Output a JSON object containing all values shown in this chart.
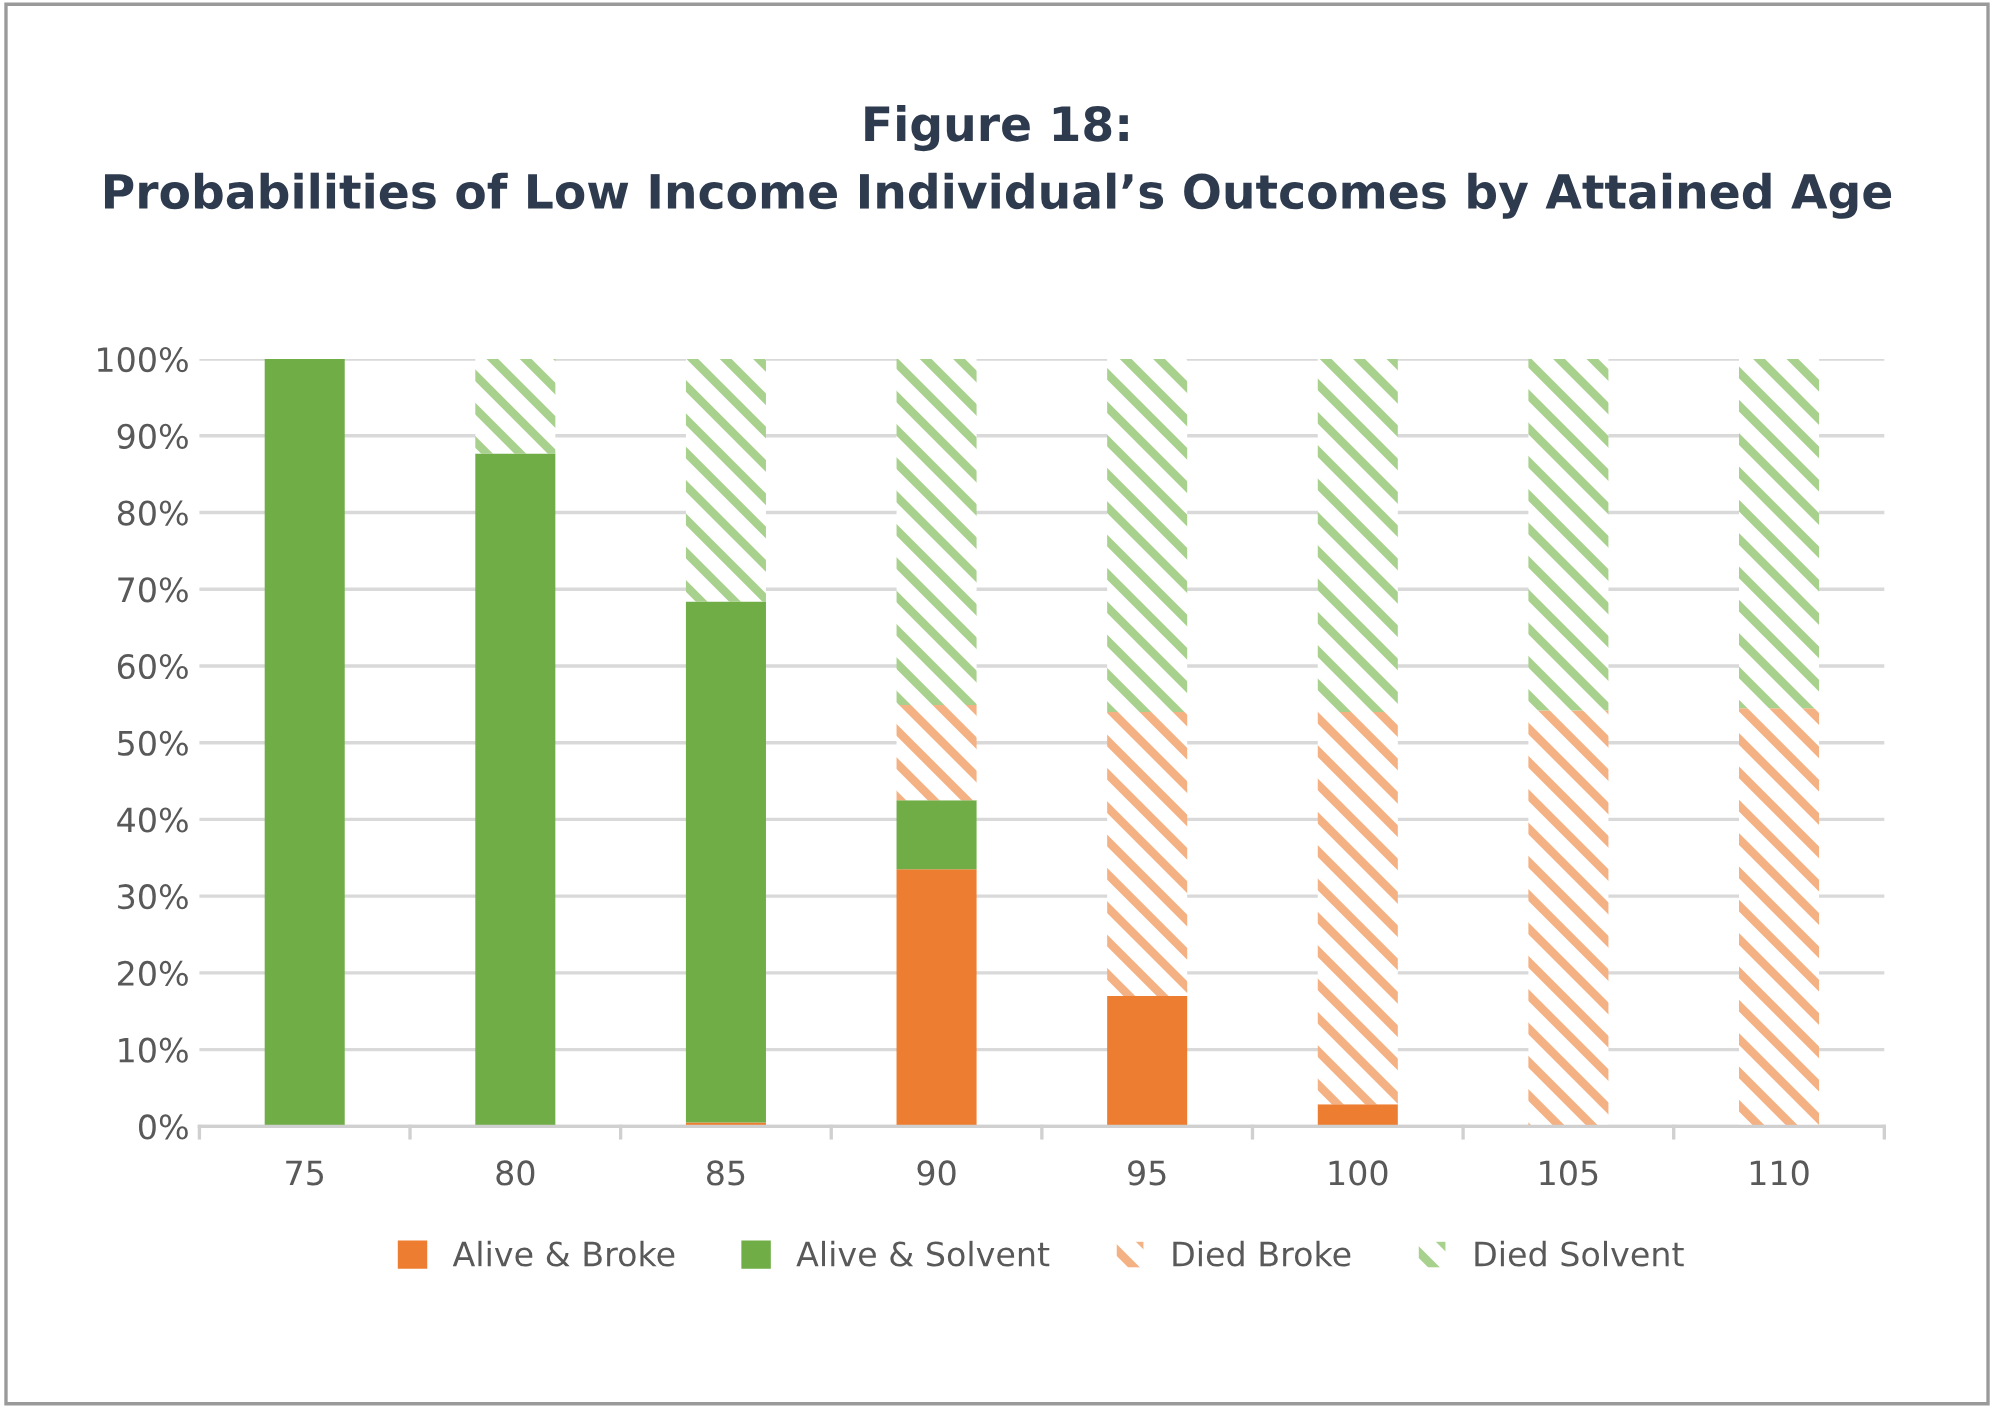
{
  "chart_data": {
    "type": "bar",
    "stacked": true,
    "title": "Figure 18:\nProbabilities of Low Income Individual’s Outcomes by Attained Age",
    "categories": [
      "75",
      "80",
      "85",
      "90",
      "95",
      "100",
      "105",
      "110"
    ],
    "series": [
      {
        "name": "Alive & Broke",
        "color": "#ed7d31",
        "values": [
          0,
          0,
          0.5,
          33.5,
          17,
          2.9,
          0,
          0
        ]
      },
      {
        "name": "Alive & Solvent",
        "color": "#70ad47",
        "values": [
          100,
          87.7,
          67.9,
          9,
          0,
          0,
          0,
          0
        ]
      },
      {
        "name": "Died Broke",
        "color": "#f4b183",
        "values": [
          0,
          0,
          0,
          12.4,
          37,
          51.1,
          54.2,
          54.5
        ]
      },
      {
        "name": "Died Solvent",
        "color": "#a9d18e",
        "values": [
          0,
          12.3,
          31.6,
          45.1,
          46,
          46,
          45.8,
          45.5
        ]
      }
    ],
    "ylim": [
      0,
      100
    ],
    "yticks": [
      {
        "value": 0,
        "label": "0%"
      },
      {
        "value": 10,
        "label": "10%"
      },
      {
        "value": 20,
        "label": "20%"
      },
      {
        "value": 30,
        "label": "30%"
      },
      {
        "value": 40,
        "label": "40%"
      },
      {
        "value": 50,
        "label": "50%"
      },
      {
        "value": 60,
        "label": "60%"
      },
      {
        "value": 70,
        "label": "70%"
      },
      {
        "value": 80,
        "label": "80%"
      },
      {
        "value": 90,
        "label": "90%"
      },
      {
        "value": 100,
        "label": "100%"
      }
    ],
    "grid": "y",
    "legend": "bottom"
  }
}
